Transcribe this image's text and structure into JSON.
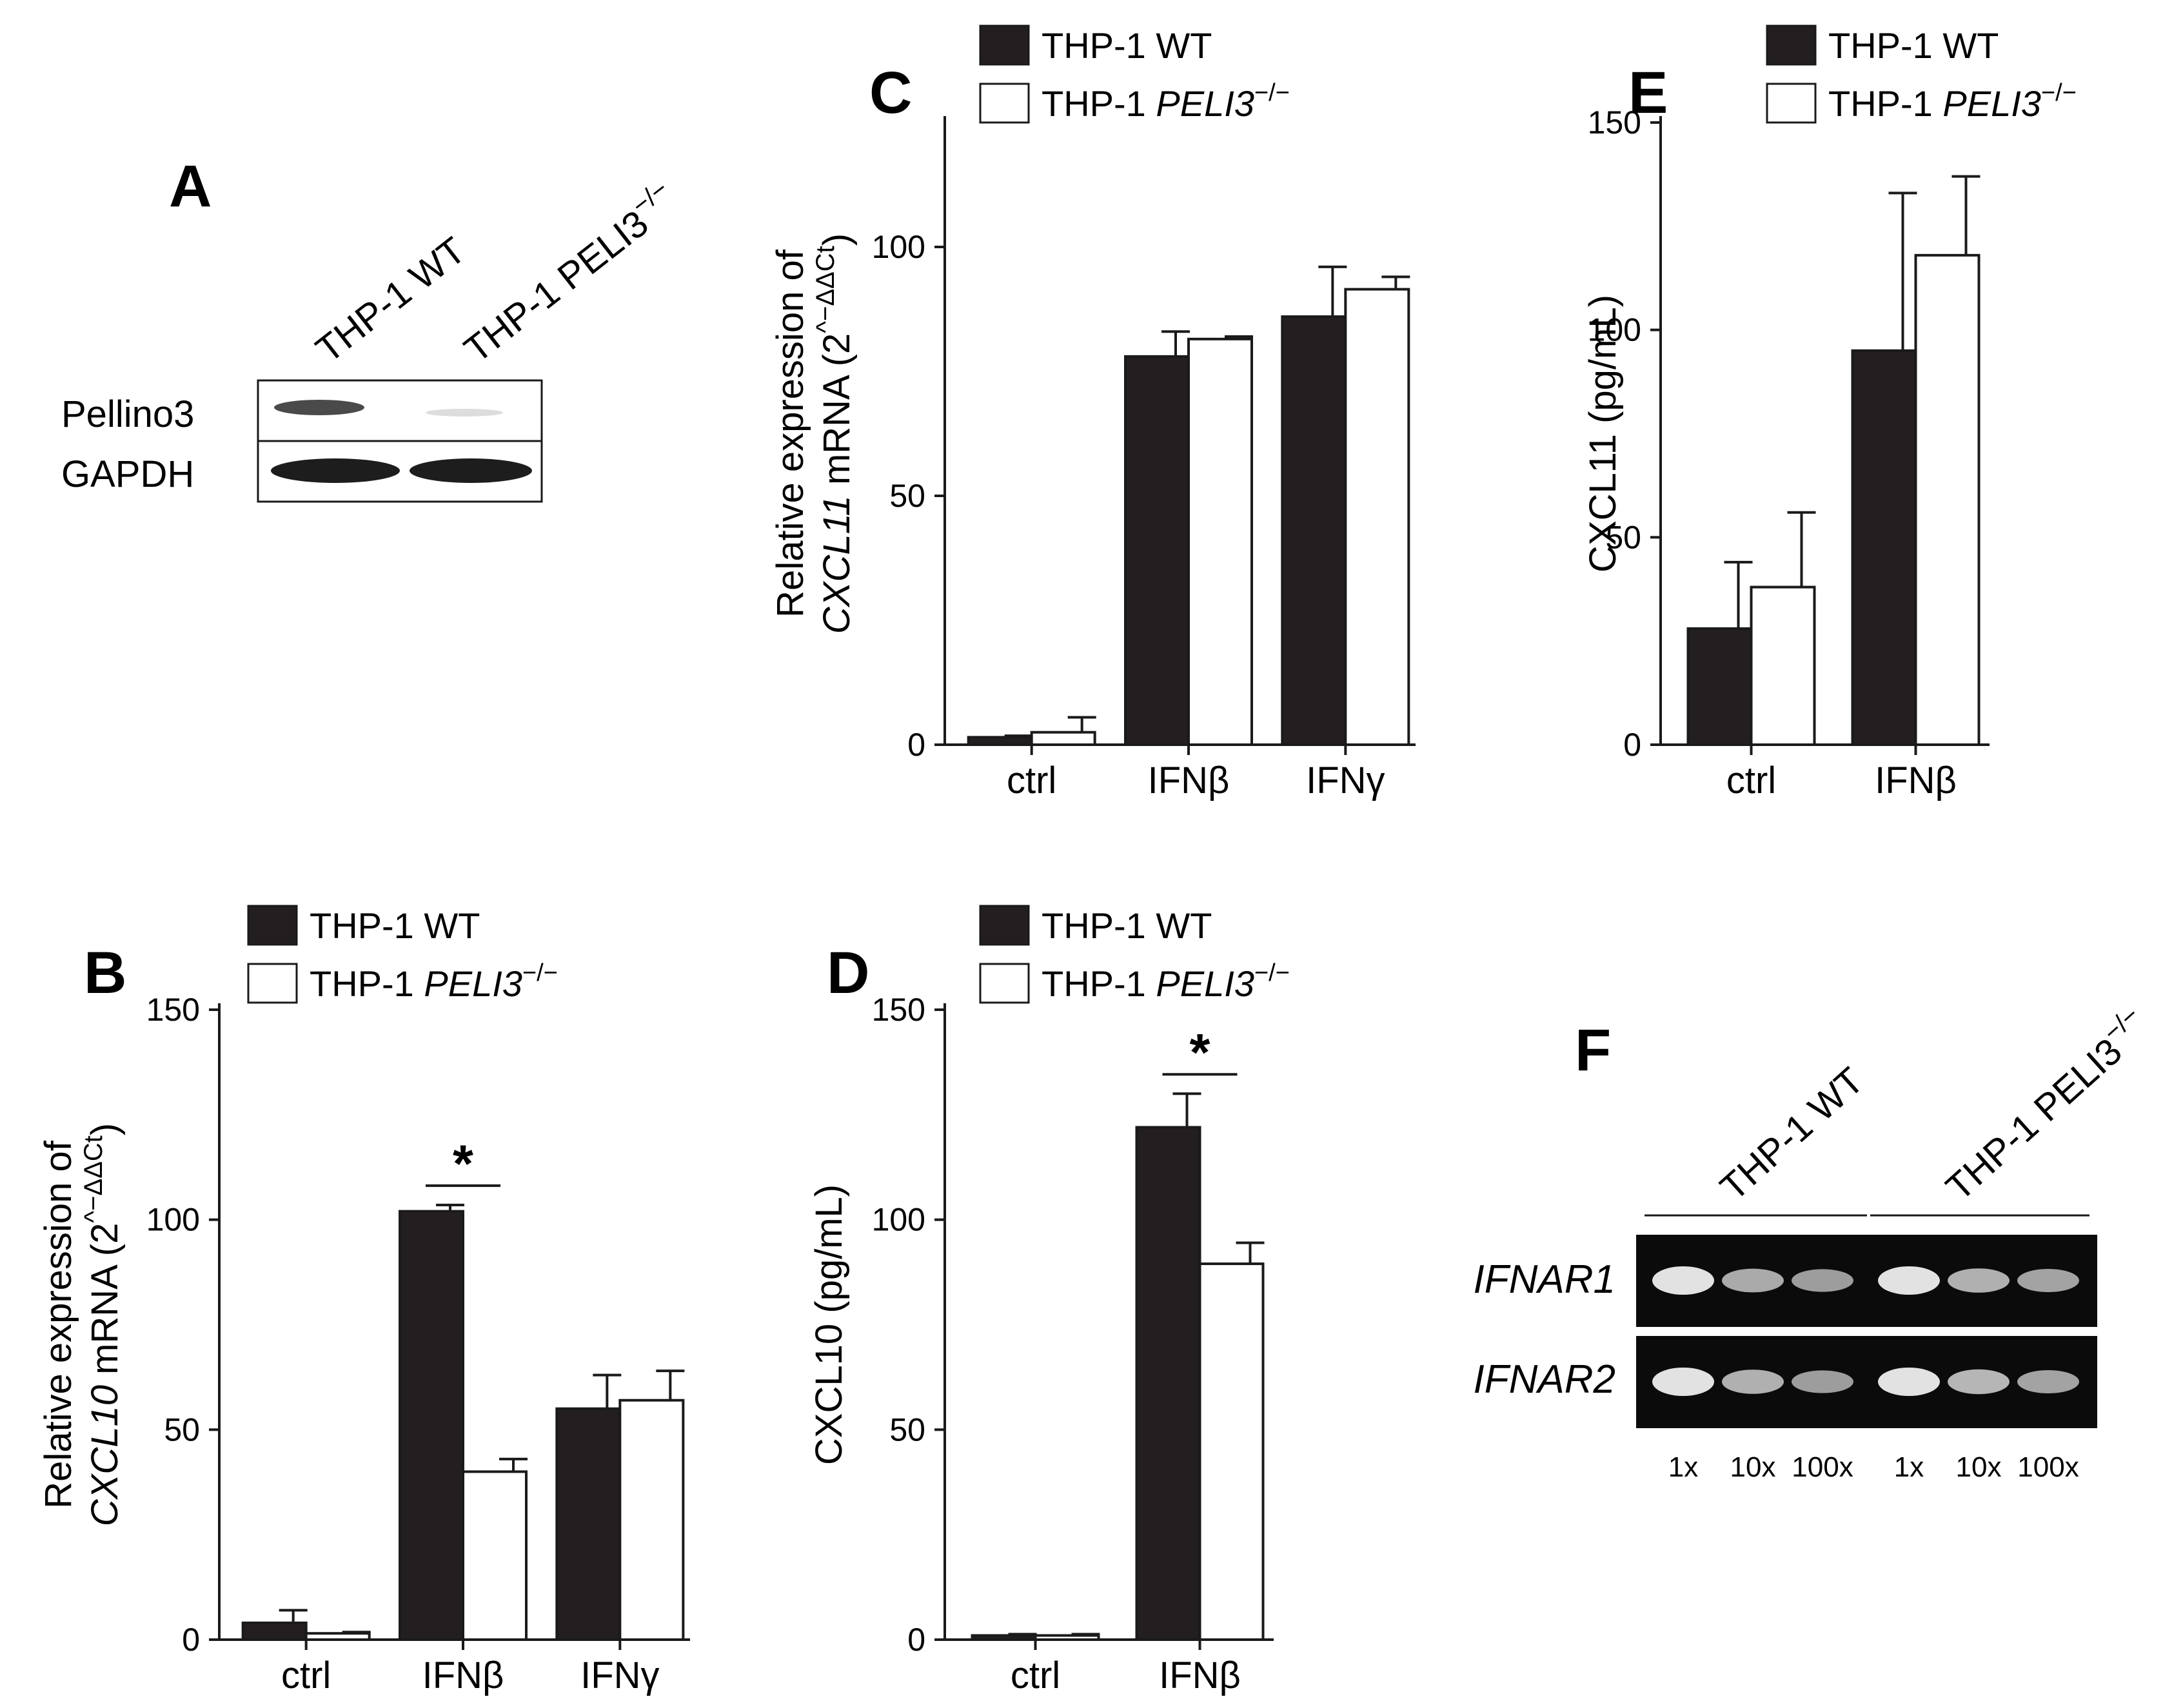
{
  "figure": {
    "legend": {
      "wt": "THP-1 WT",
      "ko_prefix": "THP-1 ",
      "ko_gene": "PELI3",
      "ko_sup": "−/−"
    },
    "colors": {
      "wt": "#231f20",
      "ko": "#ffffff",
      "axis": "#1a1a1a"
    },
    "panel_a": {
      "letter": "A",
      "lanes": [
        "THP-1 WT",
        "THP-1 PELI3"
      ],
      "lane_sup": "−/−",
      "rows": [
        "Pellino3",
        "GAPDH"
      ]
    },
    "panel_f": {
      "letter": "F",
      "groups": [
        "THP-1 WT",
        "THP-1 PELI3"
      ],
      "group_sup": "−/−",
      "genes": [
        "IFNAR1",
        "IFNAR2"
      ],
      "dilutions": [
        "1x",
        "10x",
        "100x",
        "1x",
        "10x",
        "100x"
      ]
    }
  },
  "chart_data": [
    {
      "id": "B",
      "letter": "B",
      "type": "bar",
      "categories": [
        "ctrl",
        "IFNβ",
        "IFNγ"
      ],
      "series": [
        {
          "name": "THP-1 WT",
          "values": [
            4,
            102,
            55
          ],
          "errors": [
            3,
            1.5,
            8
          ]
        },
        {
          "name": "THP-1 PELI3-/-",
          "values": [
            1.5,
            40,
            57
          ],
          "errors": [
            0.3,
            3,
            7
          ]
        }
      ],
      "ylabel_line1": "Relative expression of",
      "ylabel_gene": "CXCL10",
      "ylabel_rest": " mRNA (2",
      "ylabel_exp": "^−ΔΔCt",
      "ylabel_close": ")",
      "yticks": [
        "0",
        "50",
        "100",
        "150"
      ],
      "ylim": [
        0,
        150
      ],
      "significance": {
        "category_index": 1,
        "label": "*"
      }
    },
    {
      "id": "C",
      "letter": "C",
      "type": "bar",
      "categories": [
        "ctrl",
        "IFNβ",
        "IFNγ"
      ],
      "series": [
        {
          "name": "THP-1 WT",
          "values": [
            1.5,
            78,
            86
          ],
          "errors": [
            0.3,
            5,
            10
          ]
        },
        {
          "name": "THP-1 PELI3-/-",
          "values": [
            2.5,
            81.5,
            91.5
          ],
          "errors": [
            3,
            0.5,
            2.5
          ]
        }
      ],
      "ylabel_line1": "Relative expression of",
      "ylabel_gene": "CXCL11",
      "ylabel_rest": " mRNA (2",
      "ylabel_exp": "^−ΔΔCt",
      "ylabel_close": ")",
      "yticks": [
        "0",
        "50",
        "100"
      ],
      "ylim": [
        0,
        125
      ]
    },
    {
      "id": "D",
      "letter": "D",
      "type": "bar",
      "categories": [
        "ctrl",
        "IFNβ"
      ],
      "series": [
        {
          "name": "THP-1 WT",
          "values": [
            1,
            122
          ],
          "errors": [
            0.3,
            8
          ]
        },
        {
          "name": "THP-1 PELI3-/-",
          "values": [
            1,
            89.5
          ],
          "errors": [
            0.3,
            5
          ]
        }
      ],
      "ylabel": "CXCL10  (pg/mL)",
      "yticks": [
        "0",
        "50",
        "100",
        "150"
      ],
      "ylim": [
        0,
        150
      ],
      "significance": {
        "category_index": 1,
        "label": "*"
      }
    },
    {
      "id": "E",
      "letter": "E",
      "type": "bar",
      "categories": [
        "ctrl",
        "IFNβ"
      ],
      "series": [
        {
          "name": "THP-1 WT",
          "values": [
            28,
            95
          ],
          "errors": [
            16,
            38
          ]
        },
        {
          "name": "THP-1 PELI3-/-",
          "values": [
            38,
            118
          ],
          "errors": [
            18,
            19
          ]
        }
      ],
      "ylabel": "CXCL11  (pg/mL)",
      "yticks": [
        "0",
        "50",
        "100",
        "150"
      ],
      "ylim": [
        0,
        150
      ]
    }
  ]
}
